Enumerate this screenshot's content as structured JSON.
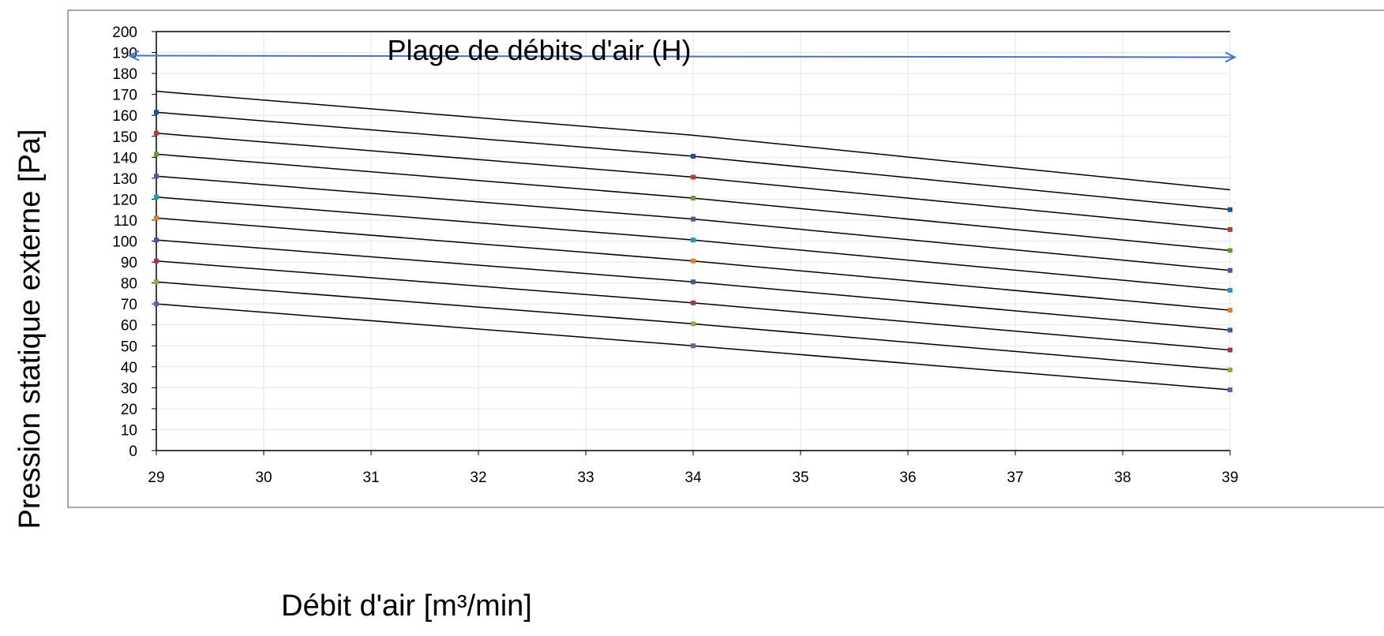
{
  "chart_data": {
    "type": "line",
    "title": "",
    "annotation": "Plage de débits d'air (H)",
    "xlabel": "Débit d'air [m³/min]",
    "ylabel": "Pression statique externe [Pa]",
    "xlim": [
      29,
      39
    ],
    "ylim": [
      0,
      200
    ],
    "x_ticks": [
      29,
      30,
      31,
      32,
      33,
      34,
      35,
      36,
      37,
      38,
      39
    ],
    "y_ticks": [
      0,
      10,
      20,
      30,
      40,
      50,
      60,
      70,
      80,
      90,
      100,
      110,
      120,
      130,
      140,
      150,
      160,
      170,
      180,
      190,
      200
    ],
    "grid": true,
    "legend": "none",
    "range_arrow": {
      "x": [
        29,
        39
      ],
      "y": 188.5
    },
    "series": [
      {
        "points": [
          [
            29,
            171.5
          ],
          [
            34,
            150.5
          ],
          [
            39,
            124.5
          ]
        ]
      },
      {
        "points": [
          [
            29,
            161.5
          ],
          [
            34,
            140.5
          ],
          [
            39,
            115
          ]
        ]
      },
      {
        "points": [
          [
            29,
            151.5
          ],
          [
            34,
            130.5
          ],
          [
            39,
            105.5
          ]
        ]
      },
      {
        "points": [
          [
            29,
            141.5
          ],
          [
            34,
            120.5
          ],
          [
            39,
            95.5
          ]
        ]
      },
      {
        "points": [
          [
            29,
            131
          ],
          [
            34,
            110.5
          ],
          [
            39,
            86
          ]
        ]
      },
      {
        "points": [
          [
            29,
            121
          ],
          [
            34,
            100.5
          ],
          [
            39,
            76.5
          ]
        ]
      },
      {
        "points": [
          [
            29,
            111
          ],
          [
            34,
            90.5
          ],
          [
            39,
            67
          ]
        ]
      },
      {
        "points": [
          [
            29,
            100.5
          ],
          [
            34,
            80.5
          ],
          [
            39,
            57.5
          ]
        ]
      },
      {
        "points": [
          [
            29,
            90.5
          ],
          [
            34,
            70.5
          ],
          [
            39,
            48
          ]
        ]
      },
      {
        "points": [
          [
            29,
            80.5
          ],
          [
            34,
            60.5
          ],
          [
            39,
            38.5
          ]
        ]
      },
      {
        "points": [
          [
            29,
            70
          ],
          [
            34,
            50
          ],
          [
            39,
            29
          ]
        ]
      }
    ],
    "marker_colors": [
      "#1f4e9c",
      "#c0392b",
      "#6b9e2e",
      "#6b4a9a",
      "#1b9ac2",
      "#e67e22",
      "#3a5ba8",
      "#b03050",
      "#8fae3a",
      "#7a55a8"
    ]
  }
}
